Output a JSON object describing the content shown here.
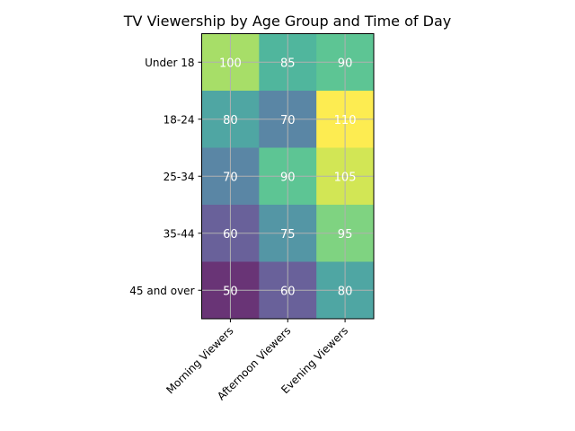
{
  "chart_data": {
    "type": "heatmap",
    "title": "TV Viewership by Age Group and Time of Day",
    "xlabel": "",
    "ylabel": "",
    "x_categories": [
      "Morning Viewers",
      "Afternoon Viewers",
      "Evening Viewers"
    ],
    "y_categories": [
      "Under 18",
      "18-24",
      "25-34",
      "35-44",
      "45 and over"
    ],
    "values": [
      [
        100,
        85,
        90
      ],
      [
        80,
        70,
        110
      ],
      [
        70,
        90,
        105
      ],
      [
        60,
        75,
        95
      ],
      [
        50,
        60,
        80
      ]
    ],
    "colormap": "viridis",
    "color_range": [
      50,
      110
    ],
    "alpha": 0.8,
    "grid": true,
    "annotations": "cell values in white",
    "legend": "none"
  }
}
